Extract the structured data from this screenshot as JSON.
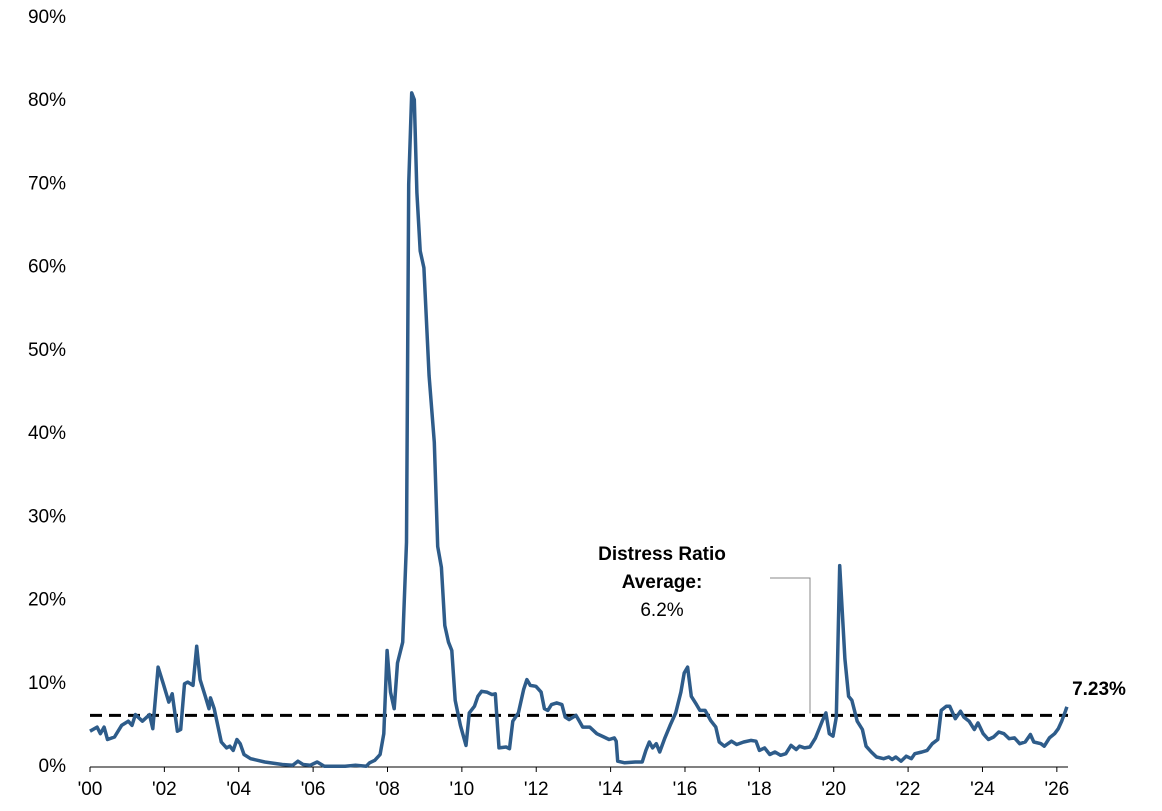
{
  "chart_data": {
    "type": "line",
    "annotation": {
      "lines": [
        "Distress Ratio",
        "Average:"
      ],
      "average": {
        "value": 6.2,
        "label": "6.2%"
      }
    },
    "end_label": "7.23%",
    "xlim": [
      2000,
      2026.3
    ],
    "xticks": [
      {
        "value": 2000,
        "label": "'00"
      },
      {
        "value": 2002,
        "label": "'02"
      },
      {
        "value": 2004,
        "label": "'04"
      },
      {
        "value": 2006,
        "label": "'06"
      },
      {
        "value": 2008,
        "label": "'08"
      },
      {
        "value": 2010,
        "label": "'10"
      },
      {
        "value": 2012,
        "label": "'12"
      },
      {
        "value": 2014,
        "label": "'14"
      },
      {
        "value": 2016,
        "label": "'16"
      },
      {
        "value": 2018,
        "label": "'18"
      },
      {
        "value": 2020,
        "label": "'20"
      },
      {
        "value": 2022,
        "label": "'22"
      },
      {
        "value": 2024,
        "label": "'24"
      },
      {
        "value": 2026,
        "label": "'26"
      }
    ],
    "ylim": [
      0,
      90
    ],
    "yticks": [
      {
        "value": 0,
        "label": "0%"
      },
      {
        "value": 10,
        "label": "10%"
      },
      {
        "value": 20,
        "label": "20%"
      },
      {
        "value": 30,
        "label": "30%"
      },
      {
        "value": 40,
        "label": "40%"
      },
      {
        "value": 50,
        "label": "50%"
      },
      {
        "value": 60,
        "label": "60%"
      },
      {
        "value": 70,
        "label": "70%"
      },
      {
        "value": 80,
        "label": "80%"
      },
      {
        "value": 90,
        "label": "90%"
      }
    ],
    "grid": false,
    "x": [
      2000,
      2000.19,
      2000.28,
      2000.38,
      2000.47,
      2000.66,
      2000.85,
      2001.03,
      2001.13,
      2001.22,
      2001.41,
      2001.6,
      2001.69,
      2001.83,
      2001.97,
      2002.12,
      2002.21,
      2002.35,
      2002.44,
      2002.54,
      2002.63,
      2002.77,
      2002.87,
      2002.96,
      2003.1,
      2003.2,
      2003.24,
      2003.34,
      2003.53,
      2003.67,
      2003.76,
      2003.85,
      2003.95,
      2004.04,
      2004.14,
      2004.32,
      2004.7,
      2005.17,
      2005.45,
      2005.59,
      2005.73,
      2005.92,
      2006.11,
      2006.3,
      2006.58,
      2006.86,
      2007.14,
      2007.43,
      2007.52,
      2007.66,
      2007.8,
      2007.9,
      2007.99,
      2008.08,
      2008.18,
      2008.27,
      2008.41,
      2008.51,
      2008.57,
      2008.65,
      2008.72,
      2008.79,
      2008.88,
      2008.98,
      2009.12,
      2009.26,
      2009.35,
      2009.45,
      2009.54,
      2009.64,
      2009.73,
      2009.82,
      2009.96,
      2010.11,
      2010.2,
      2010.34,
      2010.43,
      2010.53,
      2010.67,
      2010.81,
      2010.9,
      2011.0,
      2011.19,
      2011.28,
      2011.37,
      2011.52,
      2011.66,
      2011.75,
      2011.84,
      2011.99,
      2012.13,
      2012.22,
      2012.31,
      2012.41,
      2012.55,
      2012.69,
      2012.78,
      2012.88,
      2013.07,
      2013.16,
      2013.25,
      2013.44,
      2013.63,
      2013.82,
      2013.96,
      2014.1,
      2014.15,
      2014.19,
      2014.38,
      2014.66,
      2014.85,
      2014.95,
      2015.04,
      2015.13,
      2015.23,
      2015.32,
      2015.46,
      2015.6,
      2015.75,
      2015.89,
      2015.98,
      2016.07,
      2016.17,
      2016.31,
      2016.4,
      2016.54,
      2016.69,
      2016.83,
      2016.92,
      2017.06,
      2017.25,
      2017.39,
      2017.58,
      2017.77,
      2017.91,
      2018.0,
      2018.14,
      2018.28,
      2018.42,
      2018.57,
      2018.71,
      2018.85,
      2018.99,
      2019.08,
      2019.22,
      2019.36,
      2019.51,
      2019.6,
      2019.69,
      2019.79,
      2019.88,
      2019.98,
      2020.07,
      2020.16,
      2020.3,
      2020.4,
      2020.49,
      2020.63,
      2020.77,
      2020.87,
      2021.01,
      2021.15,
      2021.34,
      2021.48,
      2021.57,
      2021.67,
      2021.81,
      2021.95,
      2022.09,
      2022.18,
      2022.37,
      2022.51,
      2022.65,
      2022.8,
      2022.89,
      2023.03,
      2023.12,
      2023.27,
      2023.41,
      2023.5,
      2023.64,
      2023.78,
      2023.88,
      2024.02,
      2024.16,
      2024.3,
      2024.44,
      2024.58,
      2024.72,
      2024.86,
      2025.0,
      2025.15,
      2025.29,
      2025.38,
      2025.57,
      2025.66,
      2025.8,
      2025.94,
      2026.04,
      2026.13,
      2026.23,
      2026.27
    ],
    "series": [
      {
        "name": "Distress Ratio",
        "color": "#2e5c8a",
        "values": [
          4.3,
          4.8,
          4.0,
          4.8,
          3.3,
          3.6,
          5.0,
          5.5,
          5.0,
          6.3,
          5.5,
          6.3,
          4.6,
          12.0,
          10.0,
          7.8,
          8.8,
          4.3,
          4.5,
          10.0,
          10.2,
          9.8,
          14.5,
          10.5,
          8.5,
          7.0,
          8.3,
          7.0,
          3.0,
          2.3,
          2.5,
          2.0,
          3.3,
          2.8,
          1.5,
          1.0,
          0.6,
          0.3,
          0.2,
          0.7,
          0.3,
          0.2,
          0.6,
          0.1,
          0.1,
          0.1,
          0.2,
          0.1,
          0.5,
          0.8,
          1.5,
          4.0,
          14.0,
          9.0,
          7.0,
          12.5,
          15.0,
          27,
          70,
          81,
          80.2,
          69,
          62,
          60,
          47,
          39,
          26.5,
          24,
          17,
          15,
          14,
          8,
          5.0,
          2.6,
          6.5,
          7.3,
          8.5,
          9.1,
          9.0,
          8.7,
          8.8,
          2.3,
          2.4,
          2.2,
          5.5,
          6.5,
          9.3,
          10.5,
          9.8,
          9.7,
          9.0,
          7.0,
          6.8,
          7.5,
          7.7,
          7.5,
          6.0,
          5.7,
          6.2,
          5.5,
          4.8,
          4.8,
          4.0,
          3.6,
          3.3,
          3.5,
          3.1,
          0.7,
          0.5,
          0.6,
          0.6,
          2.0,
          3.0,
          2.3,
          2.8,
          1.8,
          3.5,
          5.0,
          6.5,
          9.0,
          11.3,
          12.0,
          8.5,
          7.5,
          6.8,
          6.8,
          5.6,
          4.8,
          3.0,
          2.5,
          3.1,
          2.7,
          3.0,
          3.2,
          3.1,
          2.0,
          2.3,
          1.5,
          1.8,
          1.4,
          1.6,
          2.6,
          2.1,
          2.5,
          2.3,
          2.4,
          3.5,
          4.5,
          5.5,
          6.5,
          4.0,
          3.7,
          6.0,
          24.2,
          13,
          8.5,
          8.0,
          5.5,
          4.5,
          2.5,
          1.8,
          1.2,
          1.0,
          1.2,
          0.9,
          1.2,
          0.7,
          1.3,
          1.0,
          1.6,
          1.8,
          2.0,
          2.8,
          3.3,
          6.8,
          7.3,
          7.3,
          5.8,
          6.7,
          6.0,
          5.5,
          4.5,
          5.3,
          4.0,
          3.3,
          3.6,
          4.2,
          4.0,
          3.4,
          3.5,
          2.8,
          3.0,
          3.9,
          3.0,
          2.8,
          2.5,
          3.5,
          4.0,
          4.6,
          5.5,
          6.7,
          7.23
        ]
      }
    ]
  }
}
